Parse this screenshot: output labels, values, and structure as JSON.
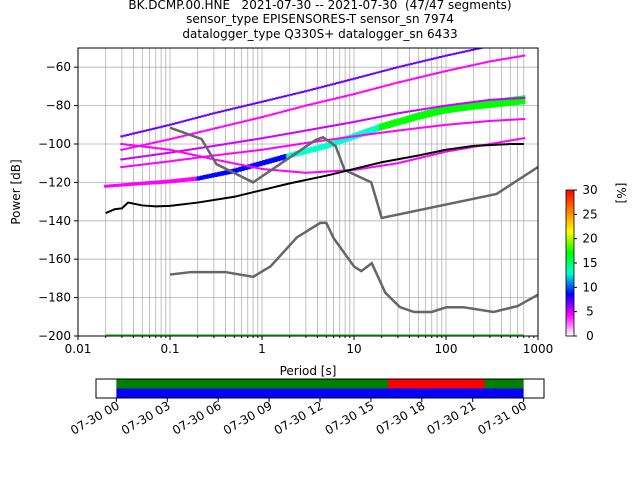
{
  "title_lines": [
    "BK.DCMP.00.HNE   2021-07-30 -- 2021-07-30  (47/47 segments)",
    "sensor_type EPISENSORES-T sensor_sn 7974",
    "datalogger_type Q330S+ datalogger_sn 6433"
  ],
  "chart_data": {
    "type": "heatmap",
    "xlabel": "Period [s]",
    "ylabel": "Power [dB]",
    "xscale": "log",
    "xlim": [
      0.01,
      1000
    ],
    "ylim": [
      -200,
      -50
    ],
    "x_tick_labels": [
      "0.01",
      "0.1",
      "1",
      "10",
      "100",
      "1000"
    ],
    "y_ticks": [
      -200,
      -180,
      -160,
      -140,
      -120,
      -100,
      -80,
      -60
    ],
    "grid": true,
    "colorbar": {
      "label": "[%]",
      "range": [
        0,
        30
      ],
      "ticks": [
        0,
        5,
        10,
        15,
        20,
        25,
        30
      ],
      "colors": [
        "#ffffff",
        "#ff00ff",
        "#0000ff",
        "#00ffcc",
        "#00ff00",
        "#ffff00",
        "#ff8000",
        "#ff0000"
      ]
    },
    "noise_model_high": {
      "x": [
        0.1,
        0.22,
        0.32,
        0.8,
        3.8,
        4.6,
        6.3,
        7.9,
        15.4,
        20,
        354.8,
        1000
      ],
      "y": [
        -91.5,
        -97.4,
        -110.5,
        -120,
        -98,
        -96.5,
        -101,
        -113.5,
        -120,
        -138.5,
        -126,
        -112
      ]
    },
    "noise_model_low": {
      "x": [
        0.1,
        0.17,
        0.4,
        0.8,
        1.24,
        2.4,
        4.3,
        5,
        6,
        10,
        12,
        15.6,
        21.9,
        31.6,
        45,
        70,
        101,
        154,
        328,
        600,
        1000
      ],
      "y": [
        -168,
        -166.7,
        -166.7,
        -169.2,
        -163.7,
        -148.6,
        -141.1,
        -141.1,
        -149,
        -163.8,
        -166.2,
        -162.1,
        -177.5,
        -185,
        -187.5,
        -187.5,
        -185,
        -185,
        -187.5,
        -184.4,
        -178.5
      ]
    },
    "mode_line": {
      "x": [
        0.02,
        0.025,
        0.03,
        0.035,
        0.05,
        0.07,
        0.1,
        0.2,
        0.5,
        1,
        2,
        5,
        10,
        20,
        50,
        100,
        200,
        500,
        700
      ],
      "y": [
        -136,
        -134,
        -133.5,
        -130.5,
        -132,
        -132.5,
        -132.2,
        -130.5,
        -127.5,
        -124,
        -120.5,
        -116.5,
        -113,
        -109.5,
        -106,
        -103,
        -101,
        -100,
        -100
      ]
    },
    "psd_bands": [
      {
        "x": [
          0.02,
          0.05,
          0.1,
          0.2,
          0.5,
          1,
          2,
          5,
          10,
          20,
          50,
          100,
          200,
          700
        ],
        "y": [
          -122,
          -120.5,
          -119.5,
          -118,
          -114,
          -110,
          -106,
          -101,
          -96,
          -91,
          -85.5,
          -82,
          -80,
          -77
        ]
      },
      {
        "x": [
          0.03,
          0.1,
          0.3,
          1,
          3,
          10,
          30,
          100,
          300,
          700
        ],
        "y": [
          -96,
          -90,
          -84,
          -78,
          -72.5,
          -66,
          -60,
          -54,
          -49,
          -47
        ]
      },
      {
        "x": [
          0.03,
          0.1,
          0.3,
          1,
          3,
          10,
          30,
          100,
          300,
          700
        ],
        "y": [
          -103,
          -97.5,
          -92,
          -86,
          -80,
          -74,
          -68,
          -62,
          -57,
          -54
        ]
      },
      {
        "x": [
          0.03,
          0.1,
          0.3,
          1,
          3,
          10,
          30,
          100,
          300,
          700
        ],
        "y": [
          -108,
          -104.5,
          -101,
          -97,
          -93,
          -88.5,
          -84,
          -80,
          -77,
          -76
        ]
      },
      {
        "x": [
          0.03,
          0.1,
          0.3,
          1,
          3,
          10,
          30,
          100,
          300,
          700
        ],
        "y": [
          -112,
          -109,
          -106,
          -103,
          -99.5,
          -96,
          -93,
          -90,
          -88,
          -87
        ]
      },
      {
        "x": [
          0.03,
          0.1,
          0.3,
          1,
          3,
          10,
          30,
          100,
          300,
          700
        ],
        "y": [
          -100,
          -103,
          -108,
          -113,
          -115,
          -113.5,
          -110,
          -104,
          -100,
          -97
        ]
      }
    ],
    "timeline": {
      "tick_labels": [
        "07-30 00",
        "07-30 03",
        "07-30 06",
        "07-30 09",
        "07-30 12",
        "07-30 15",
        "07-30 18",
        "07-30 21",
        "07-31 00"
      ],
      "tick_hours": [
        0,
        3,
        6,
        9,
        12,
        15,
        18,
        21,
        24
      ],
      "range_hours": [
        -1.2,
        25.2
      ],
      "data_hours": [
        0,
        24
      ],
      "gap_hours": [
        16,
        21.7
      ],
      "colors": {
        "data": "#008000",
        "gap": "#ff0000",
        "segments": "#0000ff"
      }
    }
  }
}
